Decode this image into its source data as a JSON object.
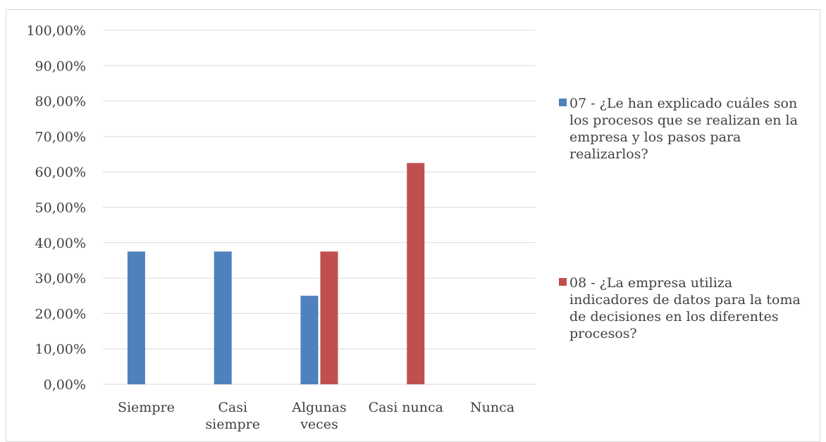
{
  "chart_data": {
    "type": "bar",
    "categories": [
      [
        "Siempre"
      ],
      [
        "Casi",
        "siempre"
      ],
      [
        "Algunas",
        "veces"
      ],
      [
        "Casi nunca"
      ],
      [
        "Nunca"
      ]
    ],
    "y_ticks": [
      "0,00%",
      "10,00%",
      "20,00%",
      "30,00%",
      "40,00%",
      "50,00%",
      "60,00%",
      "70,00%",
      "80,00%",
      "90,00%",
      "100,00%"
    ],
    "ylim": [
      0,
      100
    ],
    "y_unit": "percent",
    "grid": true,
    "legend_position": "right",
    "series": [
      {
        "name": "07 - ¿Le han explicado cuáles son los procesos que se realizan en la empresa y los pasos para realizarlos?",
        "name_lines": [
          "07 - ¿Le han explicado cuáles son",
          "los procesos que se realizan en la",
          "empresa y los pasos para",
          "realizarlos?"
        ],
        "color": "#4f81bd",
        "values": [
          37.5,
          37.5,
          25.0,
          0,
          0
        ]
      },
      {
        "name": "08 - ¿La empresa utiliza indicadores de datos para la toma de decisiones en los diferentes procesos?",
        "name_lines": [
          "08 - ¿La empresa utiliza",
          "indicadores de datos para la toma",
          "de decisiones en los diferentes",
          "procesos?"
        ],
        "color": "#c0504d",
        "values": [
          0,
          0,
          37.5,
          62.5,
          0
        ]
      }
    ]
  }
}
